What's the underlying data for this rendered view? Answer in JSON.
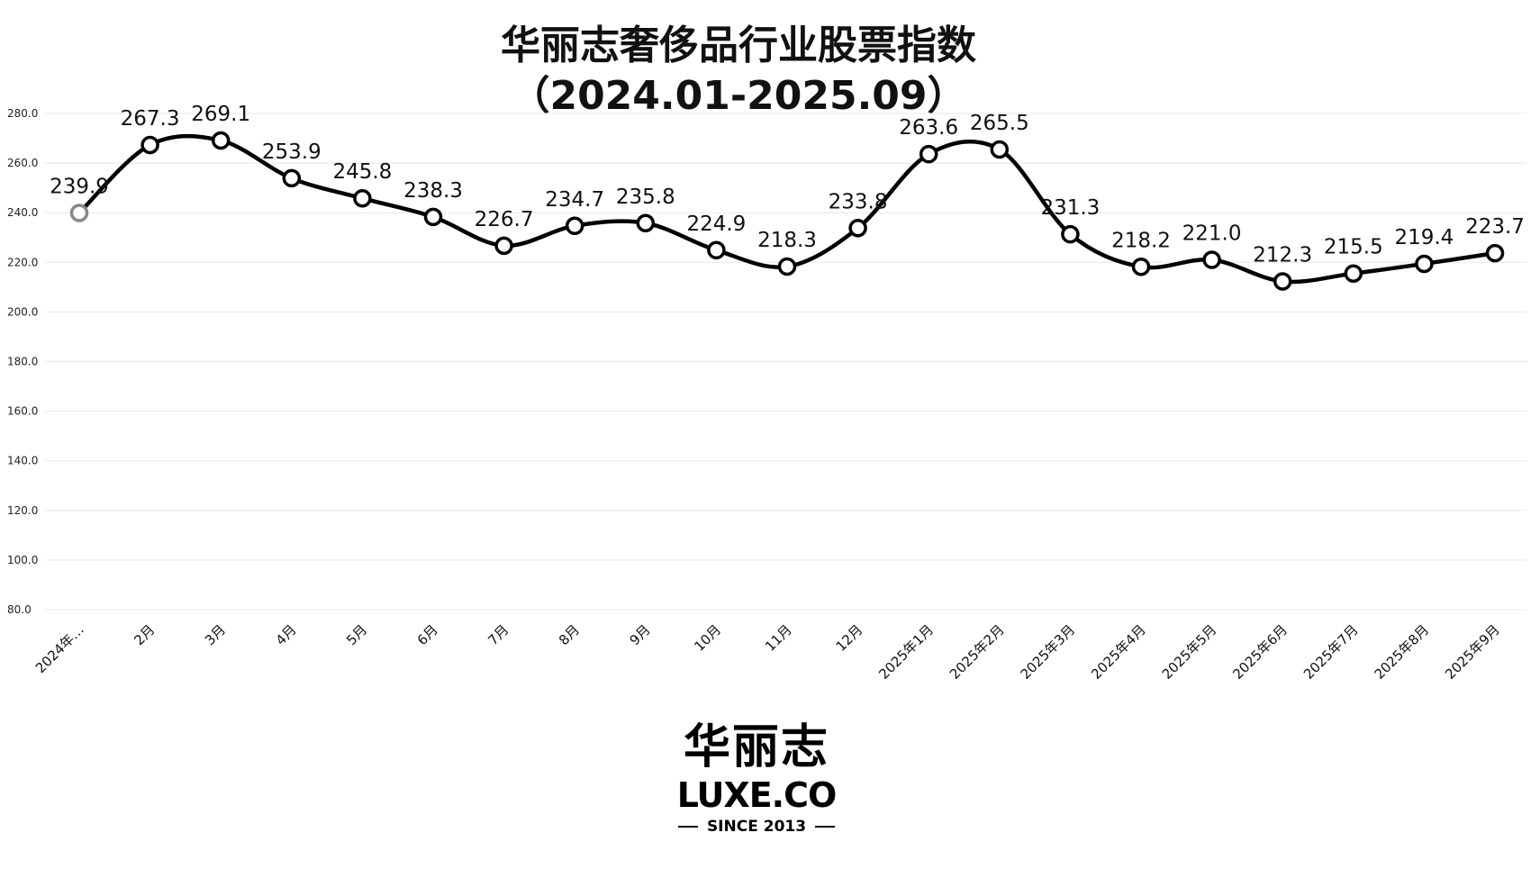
{
  "title_line1": "华丽志奢侈品行业股票指数",
  "title_line2": "（2024.01-2025.09）",
  "logo": {
    "cn": "华丽志",
    "en": "LUXE.CO",
    "since": "SINCE 2013"
  },
  "chart_data": {
    "type": "line",
    "smooth": true,
    "title": "华丽志奢侈品行业股票指数（2024.01-2025.09）",
    "xlabel": "",
    "ylabel": "",
    "categories": [
      "2024年…",
      "2月",
      "3月",
      "4月",
      "5月",
      "6月",
      "7月",
      "8月",
      "9月",
      "10月",
      "11月",
      "12月",
      "2025年1月",
      "2025年2月",
      "2025年3月",
      "2025年4月",
      "2025年5月",
      "2025年6月",
      "2025年7月",
      "2025年8月",
      "2025年9月"
    ],
    "series": [
      {
        "name": "",
        "values": [
          239.9,
          267.3,
          269.1,
          253.9,
          245.8,
          238.3,
          226.7,
          234.7,
          235.8,
          224.9,
          218.3,
          233.8,
          263.6,
          265.5,
          231.3,
          218.2,
          221.0,
          212.3,
          215.5,
          219.4,
          223.7
        ]
      }
    ],
    "data_labels": [
      "239.9",
      "267.3",
      "269.1",
      "253.9",
      "245.8",
      "238.3",
      "226.7",
      "234.7",
      "235.8",
      "224.9",
      "218.3",
      "233.8",
      "263.6",
      "265.5",
      "231.3",
      "218.2",
      "221.0",
      "212.3",
      "215.5",
      "219.4",
      "223.7"
    ],
    "ylim": [
      80,
      280
    ],
    "yticks": [
      "80.0",
      "100.0",
      "120.0",
      "140.0",
      "160.0",
      "180.0",
      "200.0",
      "220.0",
      "240.0",
      "260.0",
      "280.0"
    ],
    "grid": true,
    "legend": "none",
    "colors": {
      "line": "#000000",
      "marker_fill": "#ffffff",
      "first_marker": "#888888",
      "grid": "#e8e8e8"
    }
  }
}
